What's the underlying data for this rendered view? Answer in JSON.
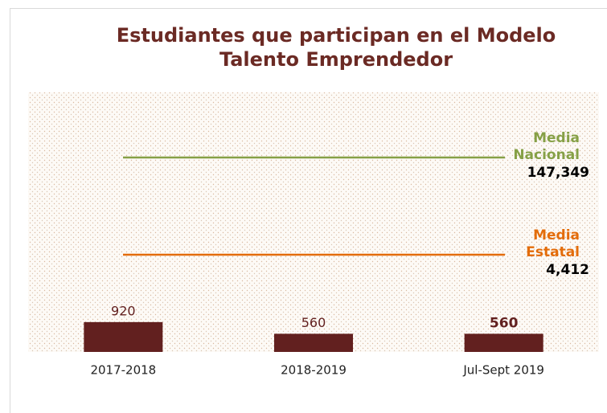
{
  "chart_data": {
    "type": "bar",
    "title": [
      "Estudiantes que participan en el Modelo",
      "Talento Emprendedor"
    ],
    "categories": [
      "2017-2018",
      "2018-2019",
      "Jul-Sept 2019"
    ],
    "values": [
      920,
      560,
      560
    ],
    "label_bold": [
      false,
      false,
      true
    ],
    "color": "#62201f",
    "ylim": [
      0,
      8000
    ],
    "reference_lines": [
      {
        "name": [
          "Media",
          "Nacional"
        ],
        "value": 147349,
        "value_label": "147,349",
        "color": "#86a046"
      },
      {
        "name": [
          "Media",
          "Estatal"
        ],
        "value": 4412,
        "value_label": "4,412",
        "color": "#e36c0a"
      }
    ]
  }
}
